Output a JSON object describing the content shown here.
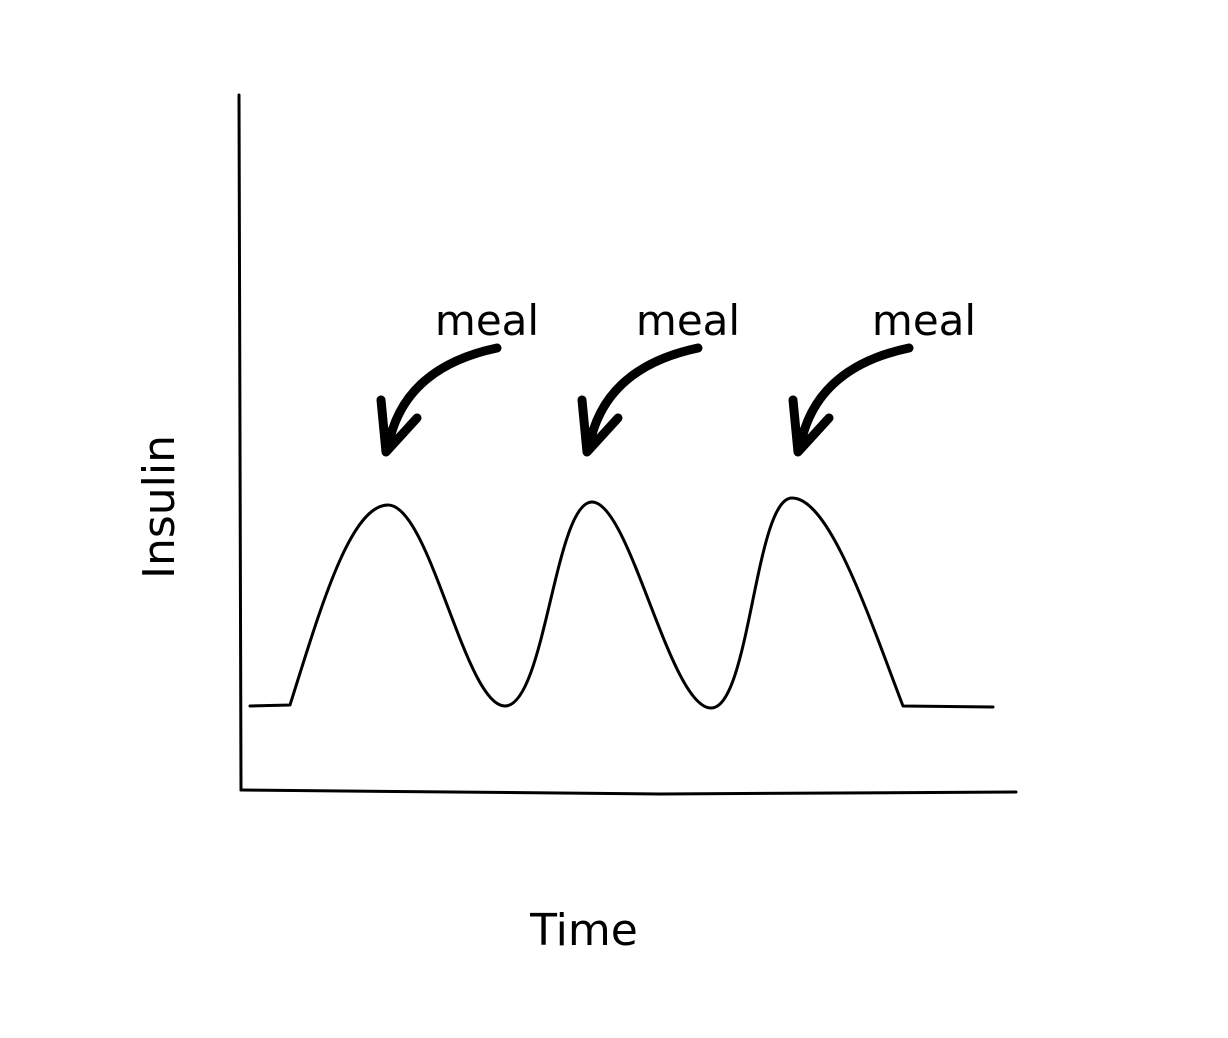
{
  "axes": {
    "y_label": "Insulin",
    "x_label": "Time"
  },
  "annotations": [
    {
      "label": "meal"
    },
    {
      "label": "meal"
    },
    {
      "label": "meal"
    }
  ]
}
